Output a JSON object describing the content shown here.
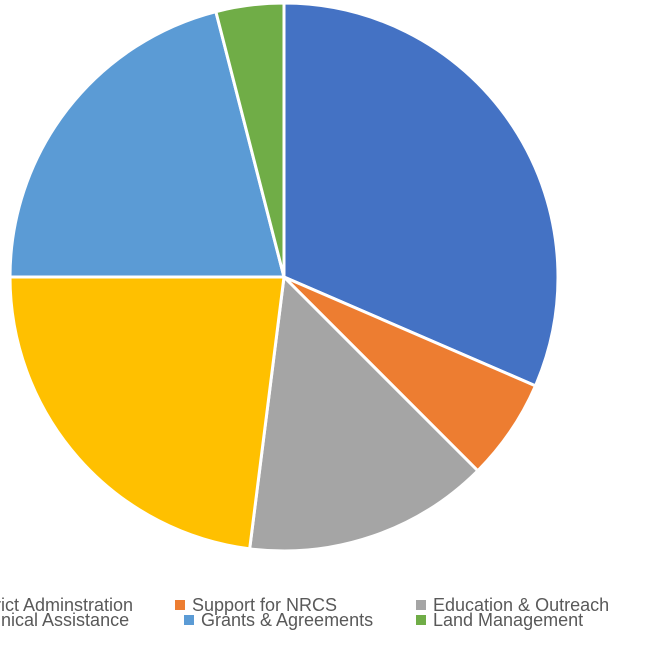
{
  "chart_data": {
    "type": "pie",
    "title": "",
    "legend_position": "bottom",
    "categories": [
      "District Adminstration",
      "Support for NRCS",
      "Education & Outreach",
      "Technical Assistance",
      "Grants & Agreements",
      "Land Management"
    ],
    "values": [
      31.5,
      6.0,
      14.5,
      23.0,
      21.0,
      4.0
    ],
    "colors": [
      "#4472C4",
      "#ED7D31",
      "#A5A5A5",
      "#FFC000",
      "#5B9BD5",
      "#70AD47"
    ],
    "start_angle": "12 o'clock",
    "direction": "clockwise"
  }
}
